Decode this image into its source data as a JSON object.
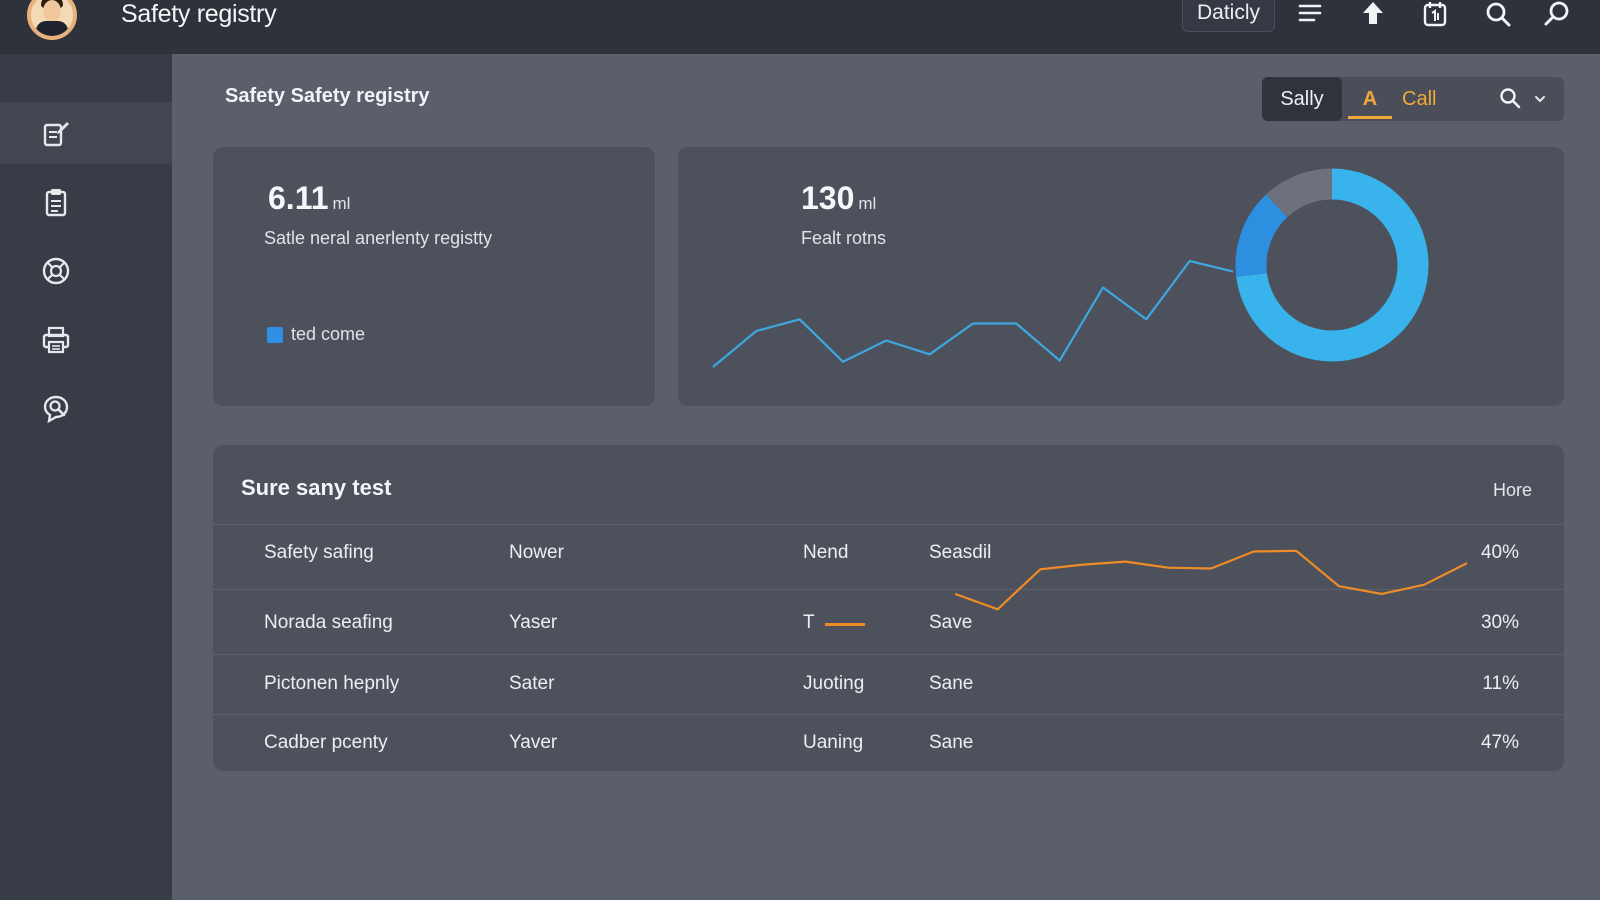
{
  "topbar": {
    "title": "Safety registry",
    "button_label": "Daticly",
    "icons": [
      "menu-icon",
      "upload-arrow-icon",
      "calendar-icon",
      "search-icon",
      "find-icon"
    ]
  },
  "sidebar": {
    "items": [
      {
        "icon": "edit-document-icon",
        "active": true
      },
      {
        "icon": "clipboard-icon",
        "active": false
      },
      {
        "icon": "support-icon",
        "active": false
      },
      {
        "icon": "printer-icon",
        "active": false
      },
      {
        "icon": "chat-search-icon",
        "active": false
      }
    ]
  },
  "main": {
    "title": "Safety Safety registry",
    "filter": {
      "options": [
        "Sally",
        "A",
        "Call"
      ],
      "selected": "Sally",
      "highlighted": "A"
    }
  },
  "cards": {
    "left": {
      "value": "6.11",
      "unit": "ml",
      "label": "Satle neral anerlenty registty",
      "legend_label": "ted come"
    },
    "right": {
      "value": "130",
      "unit": "ml",
      "label": "Fealt rotns"
    }
  },
  "table": {
    "title": "Sure sany test",
    "more": "Hore",
    "rows": [
      {
        "name": "Safety safing",
        "col2": "Nower",
        "col3": "Nend",
        "col4": "Seasdil",
        "pct": "40%"
      },
      {
        "name": "Norada seafing",
        "col2": "Yaser",
        "col3": "T",
        "col4": "Save",
        "pct": "30%"
      },
      {
        "name": "Pictonen hepnly",
        "col2": "Sater",
        "col3": "Juoting",
        "col4": "Sane",
        "pct": "11%"
      },
      {
        "name": "Cadber pcenty",
        "col2": "Yaver",
        "col3": "Uaning",
        "col4": "Sane",
        "pct": "47%"
      }
    ]
  },
  "chart_data": [
    {
      "type": "line",
      "series": [
        {
          "values": [
            0,
            34,
            45,
            5,
            25,
            12,
            41,
            41,
            6,
            75,
            45,
            100,
            90
          ]
        }
      ],
      "color": "#3ea7e0"
    },
    {
      "type": "pie",
      "slices": [
        {
          "value": 73,
          "color": "#38b3ec"
        },
        {
          "value": 15,
          "color": "#2d8fe0"
        },
        {
          "value": 12,
          "color": "#6d717c"
        }
      ]
    },
    {
      "type": "line",
      "series": [
        {
          "values": [
            30,
            10,
            62,
            68,
            72,
            64,
            63,
            85,
            86,
            40,
            30,
            42,
            70
          ]
        }
      ],
      "color": "#f08b25"
    }
  ],
  "colors": {
    "accent": "#f0a83a",
    "blue": "#38b3ec",
    "orange": "#f08b25"
  }
}
